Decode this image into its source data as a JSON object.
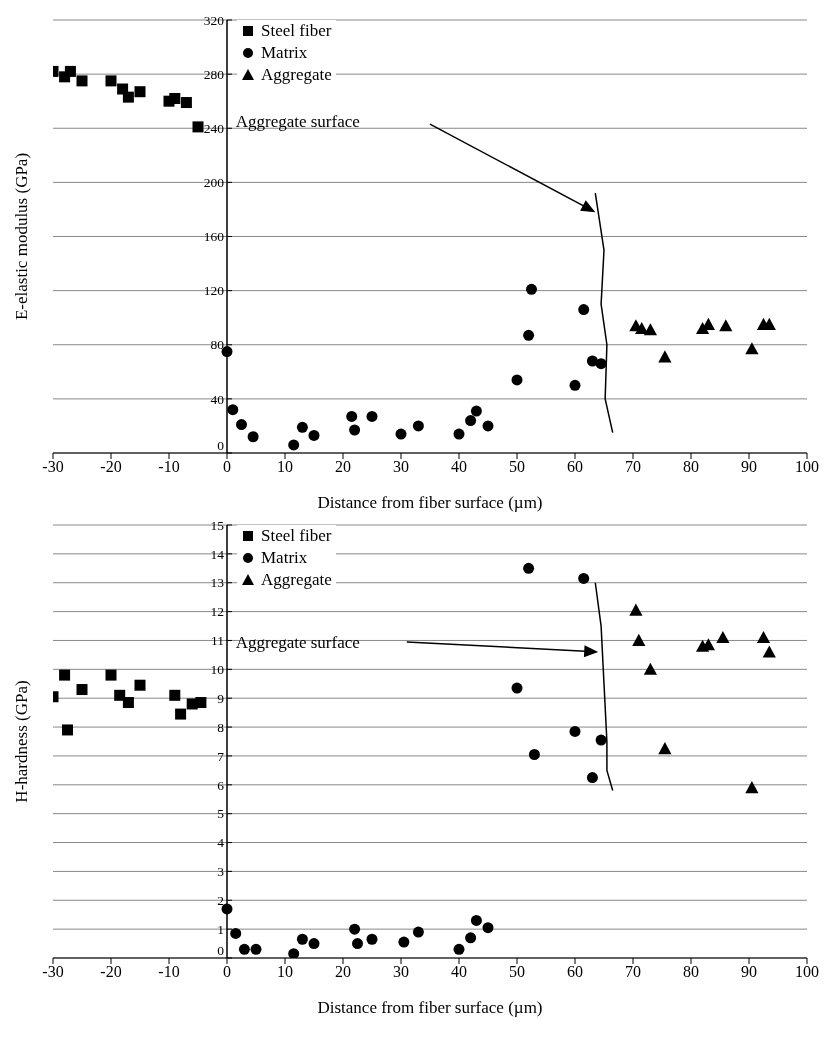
{
  "chart_data": [
    {
      "type": "scatter",
      "xlabel": "Distance from fiber surface (µm)",
      "ylabel": "E-elastic modulus (GPa)",
      "xlim": [
        -30,
        100
      ],
      "xticks": [
        -30,
        -20,
        -10,
        0,
        10,
        20,
        30,
        40,
        50,
        60,
        70,
        80,
        90,
        100
      ],
      "ylim": [
        0,
        320
      ],
      "yticks": [
        0,
        40,
        80,
        120,
        160,
        200,
        240,
        280,
        320
      ],
      "grid": "y",
      "legend": "top left",
      "annotations": [
        "Aggregate surface"
      ],
      "series": [
        {
          "name": "Steel fiber",
          "color": "#000000",
          "marker": "square",
          "x": [
            -30,
            -28,
            -27,
            -25,
            -20,
            -18,
            -17,
            -15,
            -10,
            -9,
            -7,
            -5
          ],
          "values": [
            282,
            278,
            282,
            275,
            275,
            269,
            263,
            267,
            260,
            262,
            259,
            241
          ]
        },
        {
          "name": "Matrix",
          "color": "#000000",
          "marker": "circle",
          "x": [
            0,
            1,
            2.5,
            4.5,
            11.5,
            13,
            15,
            21.5,
            22,
            25,
            30,
            33,
            40,
            42,
            43,
            45,
            50,
            52,
            52.5,
            60,
            61.5,
            63,
            64.5
          ],
          "values": [
            75,
            32,
            21,
            12,
            6,
            19,
            13,
            27,
            17,
            27,
            14,
            20,
            14,
            24,
            31,
            20,
            54,
            87,
            121,
            50,
            106,
            68,
            66
          ]
        },
        {
          "name": "Aggregate",
          "color": "#000000",
          "marker": "triangle",
          "x": [
            70.5,
            71.5,
            73,
            75.5,
            82,
            83,
            86,
            90.5,
            92.5,
            93.5
          ],
          "values": [
            94,
            92,
            91,
            71,
            92,
            95,
            94,
            77,
            95,
            95
          ]
        }
      ]
    },
    {
      "type": "scatter",
      "xlabel": "Distance from fiber surface (µm)",
      "ylabel": "H-hardness (GPa)",
      "xlim": [
        -30,
        100
      ],
      "xticks": [
        -30,
        -20,
        -10,
        0,
        10,
        20,
        30,
        40,
        50,
        60,
        70,
        80,
        90,
        100
      ],
      "ylim": [
        0,
        15
      ],
      "yticks": [
        0,
        1,
        2,
        3,
        4,
        5,
        6,
        7,
        8,
        9,
        10,
        11,
        12,
        13,
        14,
        15
      ],
      "grid": "y",
      "legend": "top left",
      "annotations": [
        "Aggregate surface"
      ],
      "series": [
        {
          "name": "Steel fiber",
          "color": "#000000",
          "marker": "square",
          "x": [
            -30,
            -28,
            -27.5,
            -25,
            -20,
            -18.5,
            -17,
            -15,
            -9,
            -8,
            -6,
            -4.5
          ],
          "values": [
            9.05,
            9.8,
            7.9,
            9.3,
            9.8,
            9.1,
            8.85,
            9.45,
            9.1,
            8.45,
            8.8,
            8.85
          ]
        },
        {
          "name": "Matrix",
          "color": "#000000",
          "marker": "circle",
          "x": [
            0,
            1.5,
            3,
            5,
            11.5,
            13,
            15,
            22,
            22.5,
            25,
            30.5,
            33,
            40,
            42,
            43,
            45,
            50,
            52,
            53,
            60,
            61.5,
            63,
            64.5
          ],
          "values": [
            1.7,
            0.85,
            0.3,
            0.3,
            0.15,
            0.65,
            0.5,
            1.0,
            0.5,
            0.65,
            0.55,
            0.9,
            0.3,
            0.7,
            1.3,
            1.05,
            9.35,
            13.5,
            7.05,
            7.85,
            13.15,
            6.25,
            7.55
          ]
        },
        {
          "name": "Aggregate",
          "color": "#000000",
          "marker": "triangle",
          "x": [
            70.5,
            71,
            73,
            75.5,
            82,
            83,
            85.5,
            90.5,
            92.5,
            93.5
          ],
          "values": [
            12.05,
            11.0,
            10.0,
            7.25,
            10.8,
            10.85,
            11.1,
            5.9,
            11.1,
            10.6
          ]
        }
      ]
    }
  ]
}
